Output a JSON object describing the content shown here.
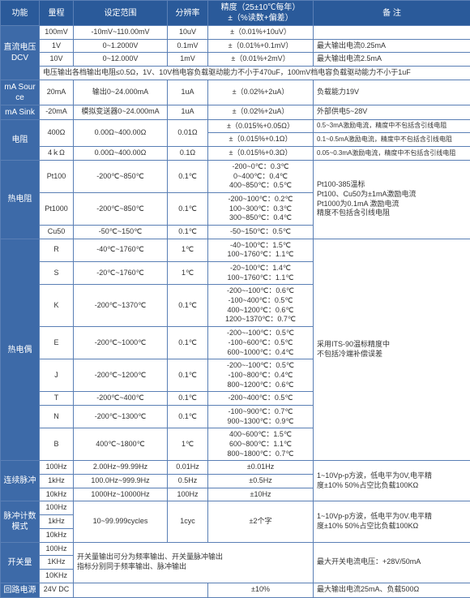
{
  "headers": {
    "c0": "功能",
    "c1": "量程",
    "c2": "设定范围",
    "c3": "分辨率",
    "c4": "精度（25±10℃每年）\n±（%读数+偏差）",
    "c5": "备 注"
  },
  "dcv": {
    "label": "直流电压\nDCV",
    "r0": {
      "rng": "100mV",
      "set": "-10mV~110.00mV",
      "res": "10uV",
      "acc": "±（0.01%+10uV）",
      "note": ""
    },
    "r1": {
      "rng": "1V",
      "set": "0~1.2000V",
      "res": "0.1mV",
      "acc": "±（0.01%+0.1mV）",
      "note": "最大输出电流0.25mA"
    },
    "r2": {
      "rng": "10V",
      "set": "0~12.000V",
      "res": "1mV",
      "acc": "±（0.01%+2mV）",
      "note": "最大输出电流2.5mA"
    },
    "note": "电压输出各档输出电阻≤0.5Ω，1V、10V档电容负载驱动能力不小于470uF，100mV档电容负载驱动能力不小于1uF"
  },
  "masrc": {
    "label": "mA Source",
    "rng": "20mA",
    "set": "输出0~24.000mA",
    "res": "1uA",
    "acc": "±（0.02%+2uA）",
    "note": "负载能力19V"
  },
  "masnk": {
    "label": "mA Sink",
    "rng": "-20mA",
    "set": "模拟变送器0~24.000mA",
    "res": "1uA",
    "acc": "±（0.02%+2uA）",
    "note": "外部供电5~28V"
  },
  "res": {
    "label": "电阻",
    "r0": {
      "rng": "400Ω",
      "set": "0.00Ω~400.00Ω",
      "res": "0.01Ω",
      "acc1": "±（0.015%+0.05Ω）",
      "acc2": "±（0.015%+0.1Ω）",
      "note1": "0.5~3mA激励电流，精度中不包括含引线电阻",
      "note2": "0.1~0.5mA激励电流，精度中不包括含引线电阻"
    },
    "r1": {
      "rng": "4ｋΩ",
      "set": "0.00Ω~400.00Ω",
      "res": "0.1Ω",
      "acc": "±（0.015%+0.3Ω）",
      "note": "0.05~0.3mA激励电流，精度中不包括含引线电阻"
    }
  },
  "rtd": {
    "label": "热电阻",
    "pt100": {
      "rng": "Pt100",
      "set": "-200℃~850℃",
      "res": "0.1℃",
      "acc": "-200~0℃：0.3℃\n0~400℃：0.4℃\n400~850℃：0.5℃"
    },
    "pt1000": {
      "rng": "Pt1000",
      "set": "-200℃~850℃",
      "res": "0.1℃",
      "acc": "-200~100℃：0.2℃\n100~300℃：0.3℃\n300~850℃：0.4℃"
    },
    "cu50": {
      "rng": "Cu50",
      "set": "-50℃~150℃",
      "res": "0.1℃",
      "acc": "-50~150℃：0.5℃"
    },
    "note": "Pt100-385温标\nPt100、Cu50为±1mA激励电流\nPt1000为0.1mA 激励电流\n精度不包括含引线电阻"
  },
  "tc": {
    "label": "热电偶",
    "R": {
      "set": "-40℃~1760℃",
      "res": "1℃",
      "acc": "-40~100℃：1.5℃\n100~1760℃：1.1℃"
    },
    "S": {
      "set": "-20℃~1760℃",
      "res": "1℃",
      "acc": "-20~100℃：1.4℃\n100~1760℃：1.1℃"
    },
    "K": {
      "set": "-200℃~1370℃",
      "res": "0.1℃",
      "acc": "-200~-100℃：0.6℃\n-100~400℃：0.5℃\n400~1200℃：0.6℃\n1200~1370℃：0.7℃"
    },
    "E": {
      "set": "-200℃~1000℃",
      "res": "0.1℃",
      "acc": "-200~-100℃：0.5℃\n-100~600℃：0.5℃\n600~1000℃：0.4℃"
    },
    "J": {
      "set": "-200℃~1200℃",
      "res": "0.1℃",
      "acc": "-200~-100℃：0.5℃\n-100~800℃：0.4℃\n800~1200℃：0.6℃"
    },
    "T": {
      "set": "-200℃~400℃",
      "res": "0.1℃",
      "acc": "-200~400℃：0.5℃"
    },
    "N": {
      "set": "-200℃~1300℃",
      "res": "0.1℃",
      "acc": "-100~900℃：0.7℃\n900~1300℃：0.9℃"
    },
    "B": {
      "set": "400℃~1800℃",
      "res": "1℃",
      "acc": "400~600℃：1.5℃\n600~800℃：1.1℃\n800~1800℃：0.7℃"
    },
    "note": "采用ITS-90温标精度中\n不包括冷端补偿误差"
  },
  "pulse": {
    "label": "连续脉冲",
    "r0": {
      "rng": "100Hz",
      "set": "2.00Hz~99.99Hz",
      "res": "0.01Hz",
      "acc": "±0.01Hz"
    },
    "r1": {
      "rng": "1kHz",
      "set": "100.0Hz~999.9Hz",
      "res": "0.5Hz",
      "acc": "±0.5Hz"
    },
    "r2": {
      "rng": "10kHz",
      "set": "1000Hz~10000Hz",
      "res": "100Hz",
      "acc": "±10Hz"
    },
    "note": "1~10Vp-p方波，低电平为0V,电平精\n度±10% 50%占空比负载100KΩ"
  },
  "pcount": {
    "label": "脉冲计数\n模式",
    "r0": {
      "rng": "100Hz"
    },
    "r1": {
      "rng": "1kHz"
    },
    "r2": {
      "rng": "10kHz"
    },
    "set": "10~99.999cycles",
    "res": "1cyc",
    "acc": "±2个字",
    "note": "1~10Vp-p方波，低电平为0V.电平精\n度±10% 50%占空比负载100KΩ"
  },
  "sw": {
    "label": "开关量",
    "r0": {
      "rng": "100Hz"
    },
    "r1": {
      "rng": "1KHz"
    },
    "r2": {
      "rng": "10KHz"
    },
    "set": "开关量输出可分为频率输出、开关量脉冲输出\n指标分别同于频率输出、脉冲输出",
    "note": "最大开关电流电压：+28V/50mA"
  },
  "loop": {
    "label": "回路电源",
    "rng": "24V DC",
    "acc": "±10%",
    "note": "最大输出电流25mA、负载500Ω"
  }
}
